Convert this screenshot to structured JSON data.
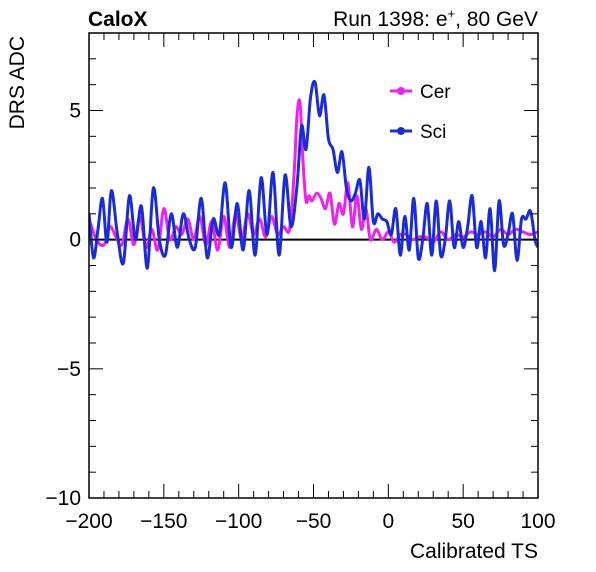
{
  "header": {
    "experiment": "CaloX",
    "run_label": "Run 1398: e",
    "run_sup": "+",
    "run_suffix": ", 80 GeV"
  },
  "chart_data": {
    "type": "line",
    "xlabel": "Calibrated TS",
    "ylabel": "DRS ADC",
    "xlim": [
      -200,
      100
    ],
    "ylim": [
      -10,
      8
    ],
    "x_ticks": [
      -200,
      -150,
      -100,
      -50,
      0,
      50,
      100
    ],
    "x_tick_labels": [
      "−200",
      "−150",
      "−100",
      "−50",
      "0",
      "50",
      "100"
    ],
    "y_ticks": [
      -10,
      -5,
      0,
      5
    ],
    "y_tick_labels": [
      "−10",
      "−5",
      "0",
      "5"
    ],
    "grid": false,
    "zero_line": true,
    "legend_position": "top-right",
    "series": [
      {
        "name": "Cer",
        "color": "#ee22ee",
        "x": [
          -200,
          -195,
          -190,
          -186,
          -182,
          -178,
          -174,
          -170,
          -166,
          -162,
          -158,
          -154,
          -150,
          -146,
          -142,
          -138,
          -134,
          -130,
          -126,
          -122,
          -118,
          -114,
          -110,
          -106,
          -102,
          -98,
          -94,
          -90,
          -86,
          -82,
          -78,
          -74,
          -70,
          -66,
          -63,
          -61,
          -59,
          -57,
          -55,
          -53,
          -51,
          -48,
          -45,
          -42,
          -39,
          -36,
          -33,
          -30,
          -27,
          -24,
          -21,
          -18,
          -15,
          -12,
          -8,
          -4,
          0,
          4,
          8,
          12,
          16,
          20,
          25,
          30,
          35,
          40,
          45,
          50,
          55,
          60,
          65,
          70,
          75,
          80,
          85,
          90,
          95,
          100
        ],
        "values": [
          0.8,
          0.0,
          -0.2,
          0.5,
          0.1,
          -0.2,
          0.8,
          -0.2,
          0.9,
          -0.3,
          0.4,
          -0.4,
          1.2,
          0.0,
          0.5,
          0.2,
          0.8,
          0.0,
          0.9,
          -0.2,
          0.7,
          -0.4,
          0.9,
          -0.3,
          1.0,
          0.0,
          1.0,
          0.2,
          0.8,
          0.1,
          0.9,
          0.2,
          0.5,
          0.4,
          2.5,
          4.8,
          5.3,
          3.0,
          1.5,
          1.7,
          1.5,
          1.8,
          1.6,
          1.2,
          1.8,
          0.6,
          1.4,
          1.0,
          2.2,
          0.5,
          1.7,
          0.4,
          1.2,
          0.0,
          0.4,
          0.0,
          0.3,
          -0.1,
          0.2,
          0.2,
          0.0,
          0.1,
          0.1,
          -0.1,
          0.3,
          0.0,
          0.2,
          0.1,
          0.3,
          0.2,
          0.3,
          0.1,
          0.4,
          0.2,
          0.4,
          0.3,
          0.2,
          0.3
        ]
      },
      {
        "name": "Sci",
        "color": "#1a2cd8",
        "x": [
          -200,
          -197,
          -194,
          -191,
          -188,
          -185,
          -181,
          -177,
          -173,
          -169,
          -165,
          -161,
          -157,
          -153,
          -149,
          -145,
          -141,
          -137,
          -133,
          -129,
          -125,
          -121,
          -117,
          -113,
          -109,
          -105,
          -101,
          -97,
          -93,
          -89,
          -85,
          -81,
          -77,
          -73,
          -69,
          -65,
          -61,
          -58,
          -55,
          -52,
          -49,
          -46,
          -43,
          -40,
          -37,
          -34,
          -31,
          -28,
          -25,
          -22,
          -19,
          -16,
          -13,
          -10,
          -7,
          -4,
          -1,
          2,
          5,
          8,
          11,
          14,
          17,
          20,
          23,
          26,
          29,
          32,
          35,
          38,
          41,
          44,
          47,
          50,
          53,
          56,
          59,
          62,
          65,
          68,
          71,
          74,
          77,
          80,
          83,
          86,
          89,
          92,
          95,
          98,
          100
        ],
        "values": [
          1.0,
          -0.7,
          0.4,
          1.6,
          -0.1,
          1.9,
          0.2,
          -0.9,
          1.7,
          0.0,
          1.3,
          -1.1,
          2.0,
          0.0,
          -0.6,
          1.0,
          -0.3,
          1.0,
          0.0,
          -0.3,
          1.6,
          -0.7,
          0.8,
          0.2,
          2.2,
          -0.3,
          1.4,
          -0.4,
          1.9,
          -0.6,
          2.4,
          0.2,
          2.6,
          -0.6,
          2.5,
          0.5,
          2.1,
          4.4,
          3.5,
          5.5,
          6.1,
          4.8,
          5.6,
          3.9,
          3.5,
          2.6,
          3.4,
          2.0,
          1.5,
          1.8,
          2.3,
          0.8,
          2.8,
          0.7,
          1.0,
          0.8,
          0.7,
          0.2,
          1.2,
          -0.6,
          0.9,
          -0.4,
          1.6,
          -0.7,
          0.0,
          1.4,
          -0.6,
          1.5,
          -0.6,
          0.0,
          1.5,
          -0.3,
          0.7,
          -0.3,
          0.5,
          1.7,
          -0.3,
          0.7,
          -0.7,
          1.2,
          -1.2,
          1.5,
          -0.2,
          0.2,
          1.0,
          -0.8,
          0.8,
          0.8,
          1.1,
          0.0,
          -0.3
        ]
      }
    ]
  }
}
